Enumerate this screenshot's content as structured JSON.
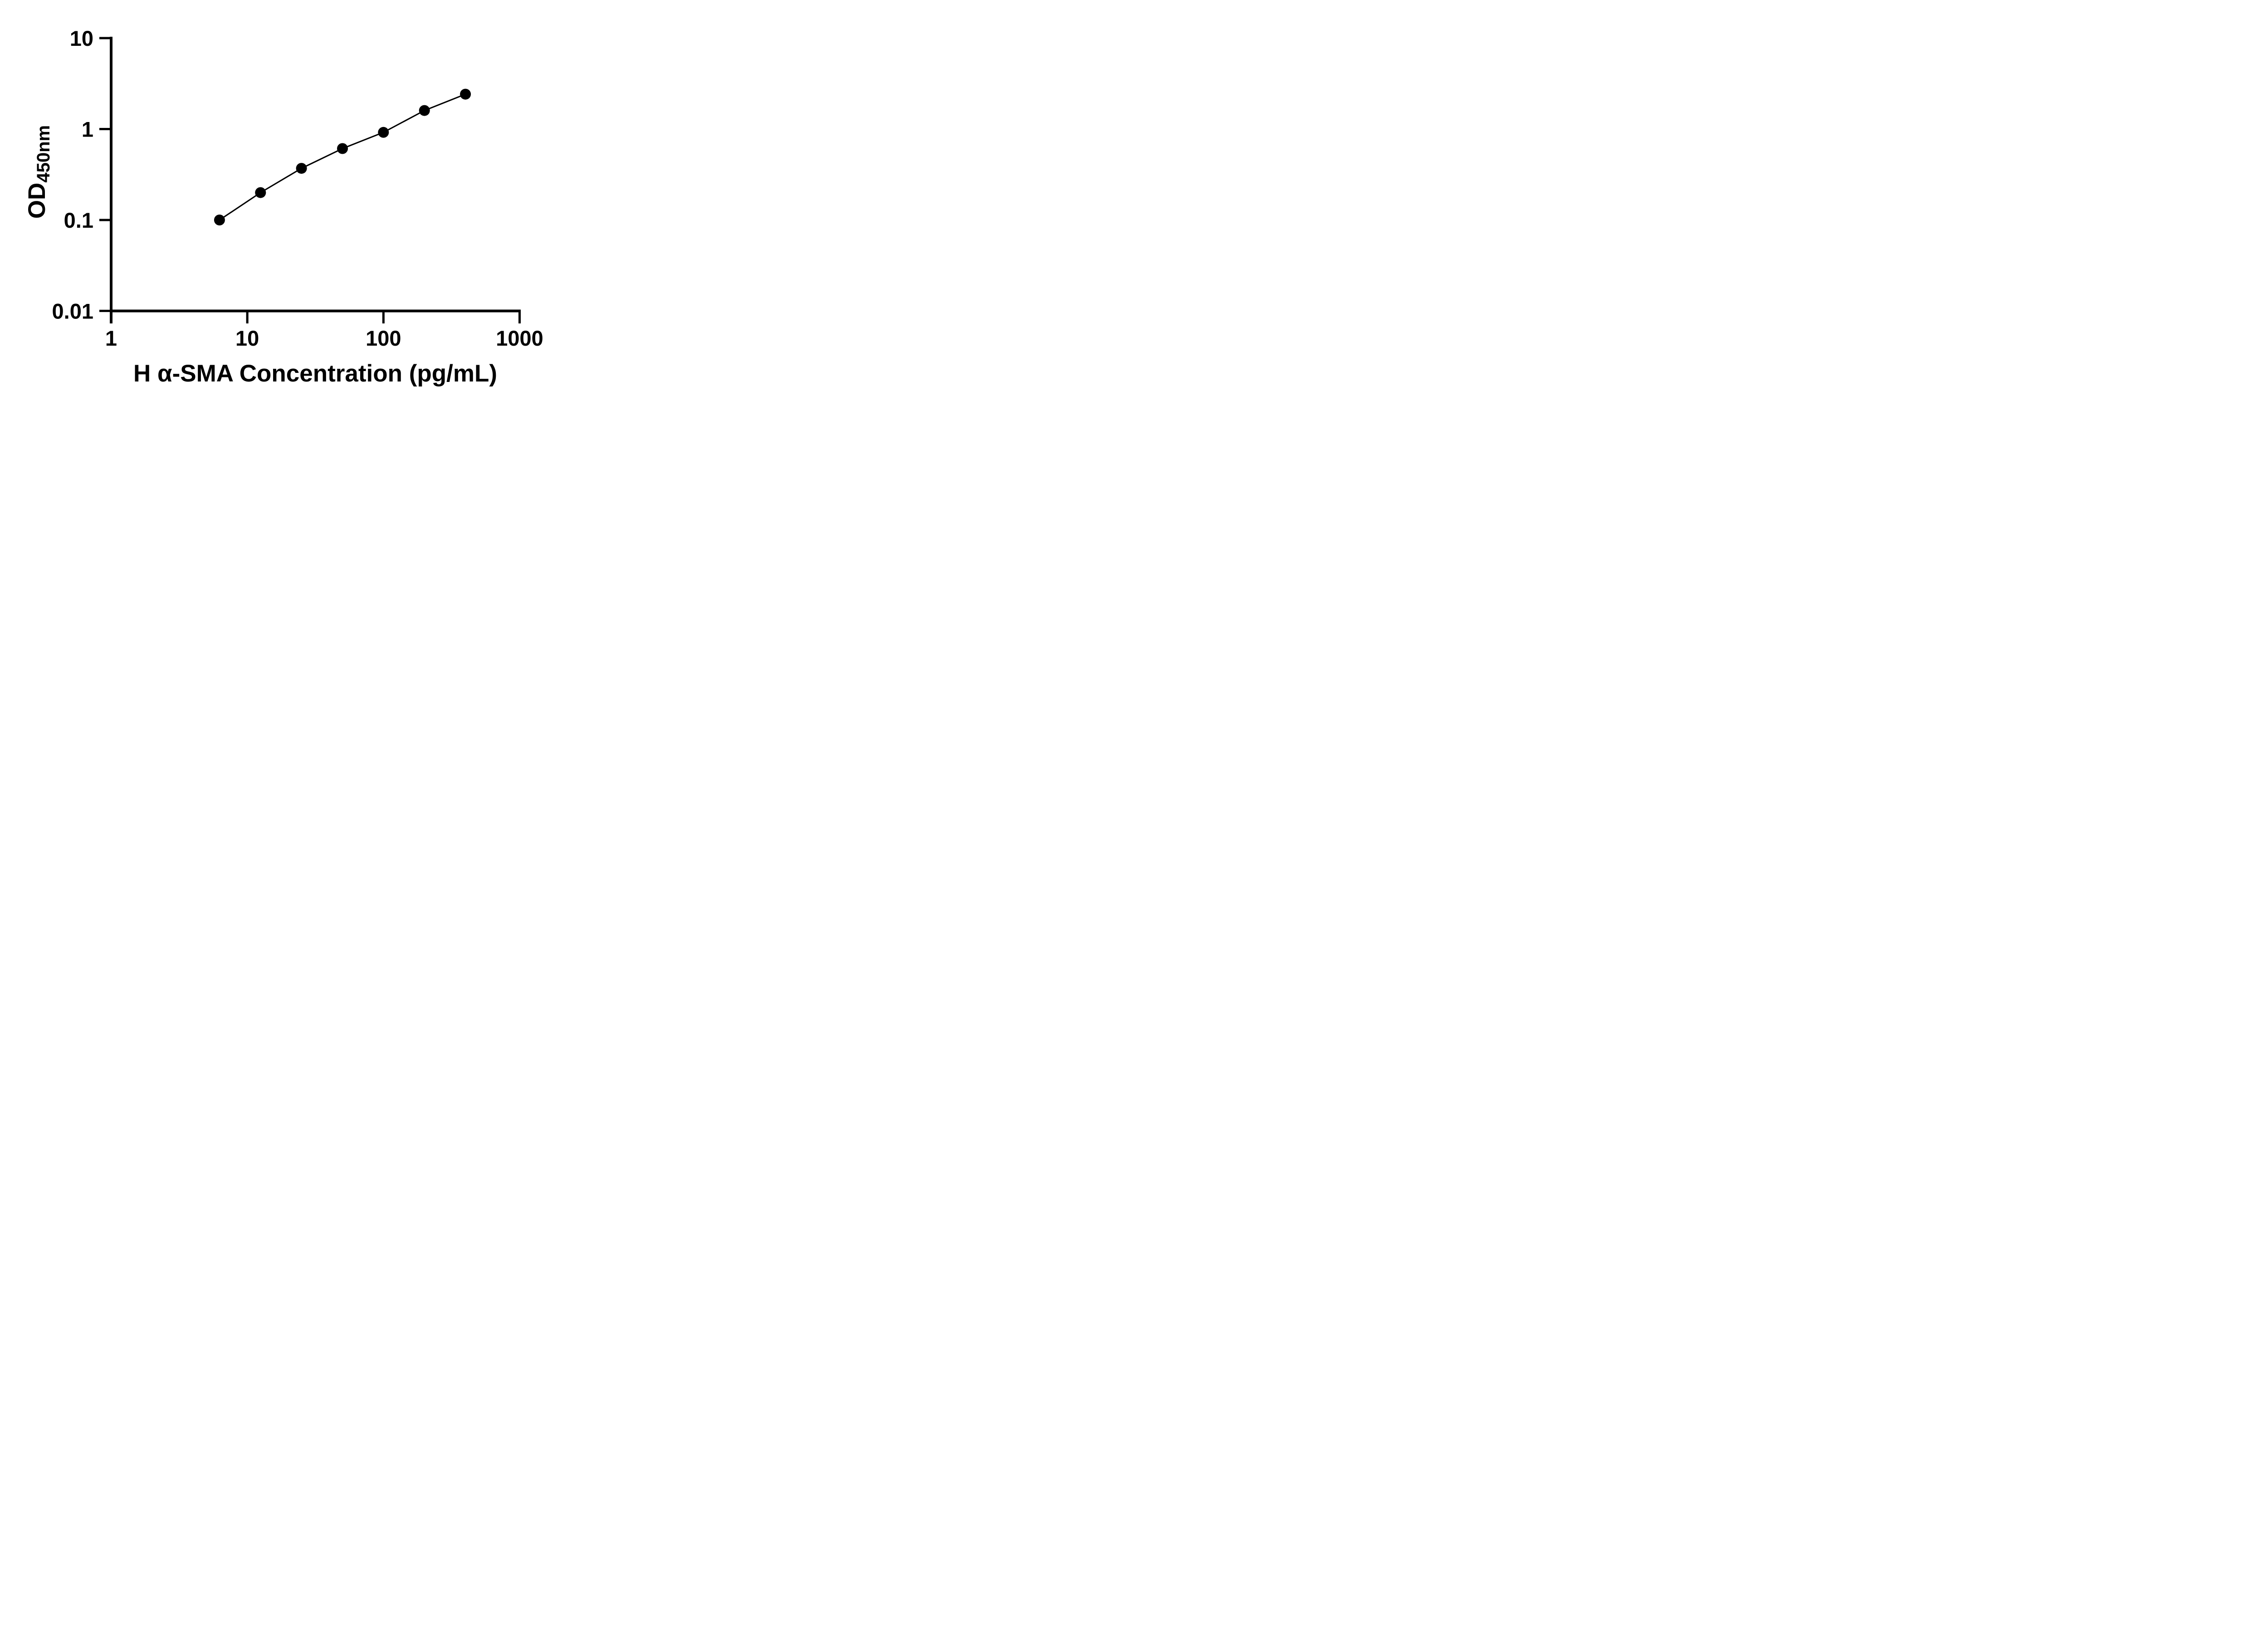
{
  "figure": {
    "background_color": "#ffffff",
    "ink_color": "#000000"
  },
  "chart_data": {
    "type": "scatter",
    "title": "",
    "xlabel": "H α-SMA Concentration (pg/mL)",
    "ylabel_main": "OD",
    "ylabel_sub": "450nm",
    "x_scale": "log10",
    "y_scale": "log10",
    "xlim": [
      1,
      1000
    ],
    "ylim": [
      0.01,
      10
    ],
    "x_tick_values": [
      1,
      10,
      100,
      1000
    ],
    "x_tick_labels": [
      "1",
      "10",
      "100",
      "1000"
    ],
    "y_tick_values": [
      10,
      1,
      0.1,
      0.01
    ],
    "y_tick_labels": [
      "10",
      "1",
      "0.1",
      "0.01"
    ],
    "grid": false,
    "legend_position": "none",
    "marker": "circle",
    "marker_color": "#000000",
    "line_color": "#000000",
    "x": [
      6.25,
      12.5,
      25,
      50,
      100,
      200,
      400
    ],
    "y": [
      0.1,
      0.2,
      0.37,
      0.61,
      0.92,
      1.6,
      2.42
    ]
  }
}
